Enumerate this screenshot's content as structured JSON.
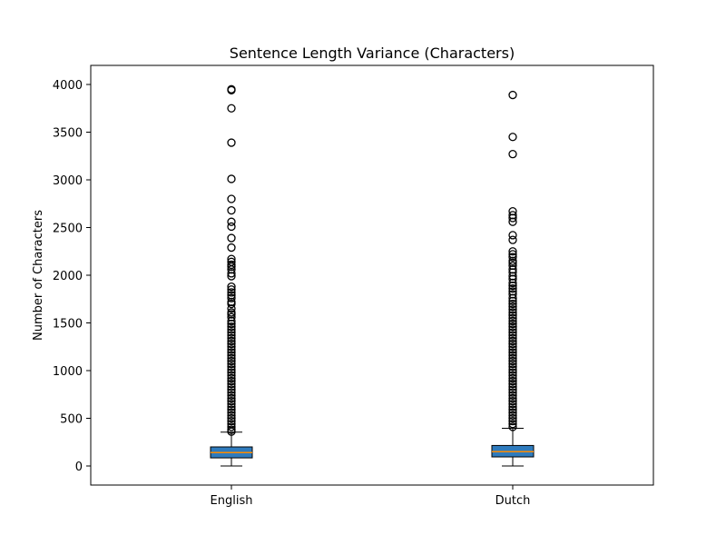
{
  "chart_data": {
    "type": "box",
    "title": "Sentence Length Variance (Characters)",
    "xlabel": "",
    "ylabel": "Number of Characters",
    "categories": [
      "English",
      "Dutch"
    ],
    "ylim": [
      -200,
      4200
    ],
    "yticks": [
      0,
      500,
      1000,
      1500,
      2000,
      2500,
      3000,
      3500,
      4000
    ],
    "grid": false,
    "colors": {
      "box_fill": "#2f7bbd",
      "median": "#ff8c00",
      "line": "#000000"
    },
    "boxes": [
      {
        "name": "English",
        "whisker_low": 0,
        "q1": 85,
        "median": 140,
        "q3": 200,
        "whisker_high": 355,
        "outliers": [
          3950,
          3940,
          3750,
          3390,
          3010,
          2800,
          2680,
          2560,
          2510,
          2390,
          2290,
          2170,
          2140,
          2110,
          2090,
          2060,
          2020,
          1990,
          1880,
          1850,
          1820,
          1790,
          1760,
          1720,
          1700,
          1650,
          1610,
          1590,
          1560,
          1520,
          1490,
          1460,
          1430,
          1400,
          1370,
          1340,
          1310,
          1280,
          1250,
          1220,
          1190,
          1160,
          1130,
          1100,
          1070,
          1040,
          1010,
          980,
          950,
          920,
          890,
          860,
          830,
          800,
          770,
          740,
          710,
          680,
          650,
          620,
          590,
          560,
          530,
          500,
          470,
          440,
          410,
          380,
          360
        ]
      },
      {
        "name": "Dutch",
        "whisker_low": 0,
        "q1": 95,
        "median": 150,
        "q3": 215,
        "whisker_high": 395,
        "outliers": [
          3890,
          3450,
          3270,
          2670,
          2630,
          2600,
          2560,
          2420,
          2370,
          2250,
          2220,
          2190,
          2150,
          2130,
          2100,
          2060,
          2030,
          1990,
          1960,
          1920,
          1890,
          1860,
          1830,
          1800,
          1760,
          1730,
          1700,
          1670,
          1640,
          1610,
          1580,
          1550,
          1520,
          1490,
          1460,
          1430,
          1400,
          1370,
          1340,
          1310,
          1280,
          1250,
          1220,
          1190,
          1160,
          1130,
          1100,
          1070,
          1040,
          1010,
          980,
          950,
          920,
          890,
          860,
          830,
          800,
          770,
          740,
          710,
          680,
          650,
          620,
          590,
          560,
          530,
          500,
          470,
          440,
          410
        ]
      }
    ]
  }
}
